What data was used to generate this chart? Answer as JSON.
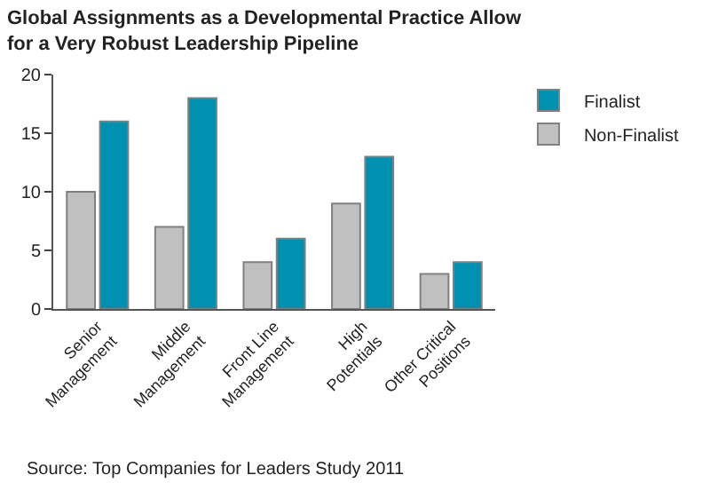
{
  "chart_data": {
    "type": "bar",
    "title": "Global Assignments as a Developmental Practice Allow\nfor a Very Robust Leadership Pipeline",
    "categories": [
      "Senior\nManagement",
      "Middle\nManagement",
      "Front Line\nManagement",
      "High\nPotentials",
      "Other Critical\nPositions"
    ],
    "series": [
      {
        "name": "Non-Finalist",
        "color": "#c0c0c0",
        "values": [
          10,
          7,
          4,
          9,
          3
        ]
      },
      {
        "name": "Finalist",
        "color": "#0090b0",
        "values": [
          16,
          18,
          6,
          13,
          4
        ]
      }
    ],
    "ylim": [
      0,
      20
    ],
    "yticks": [
      0,
      5,
      10,
      15,
      20
    ],
    "legend": "top right",
    "annotations": [
      "Source: Top Companies for Leaders Study 2011"
    ]
  }
}
